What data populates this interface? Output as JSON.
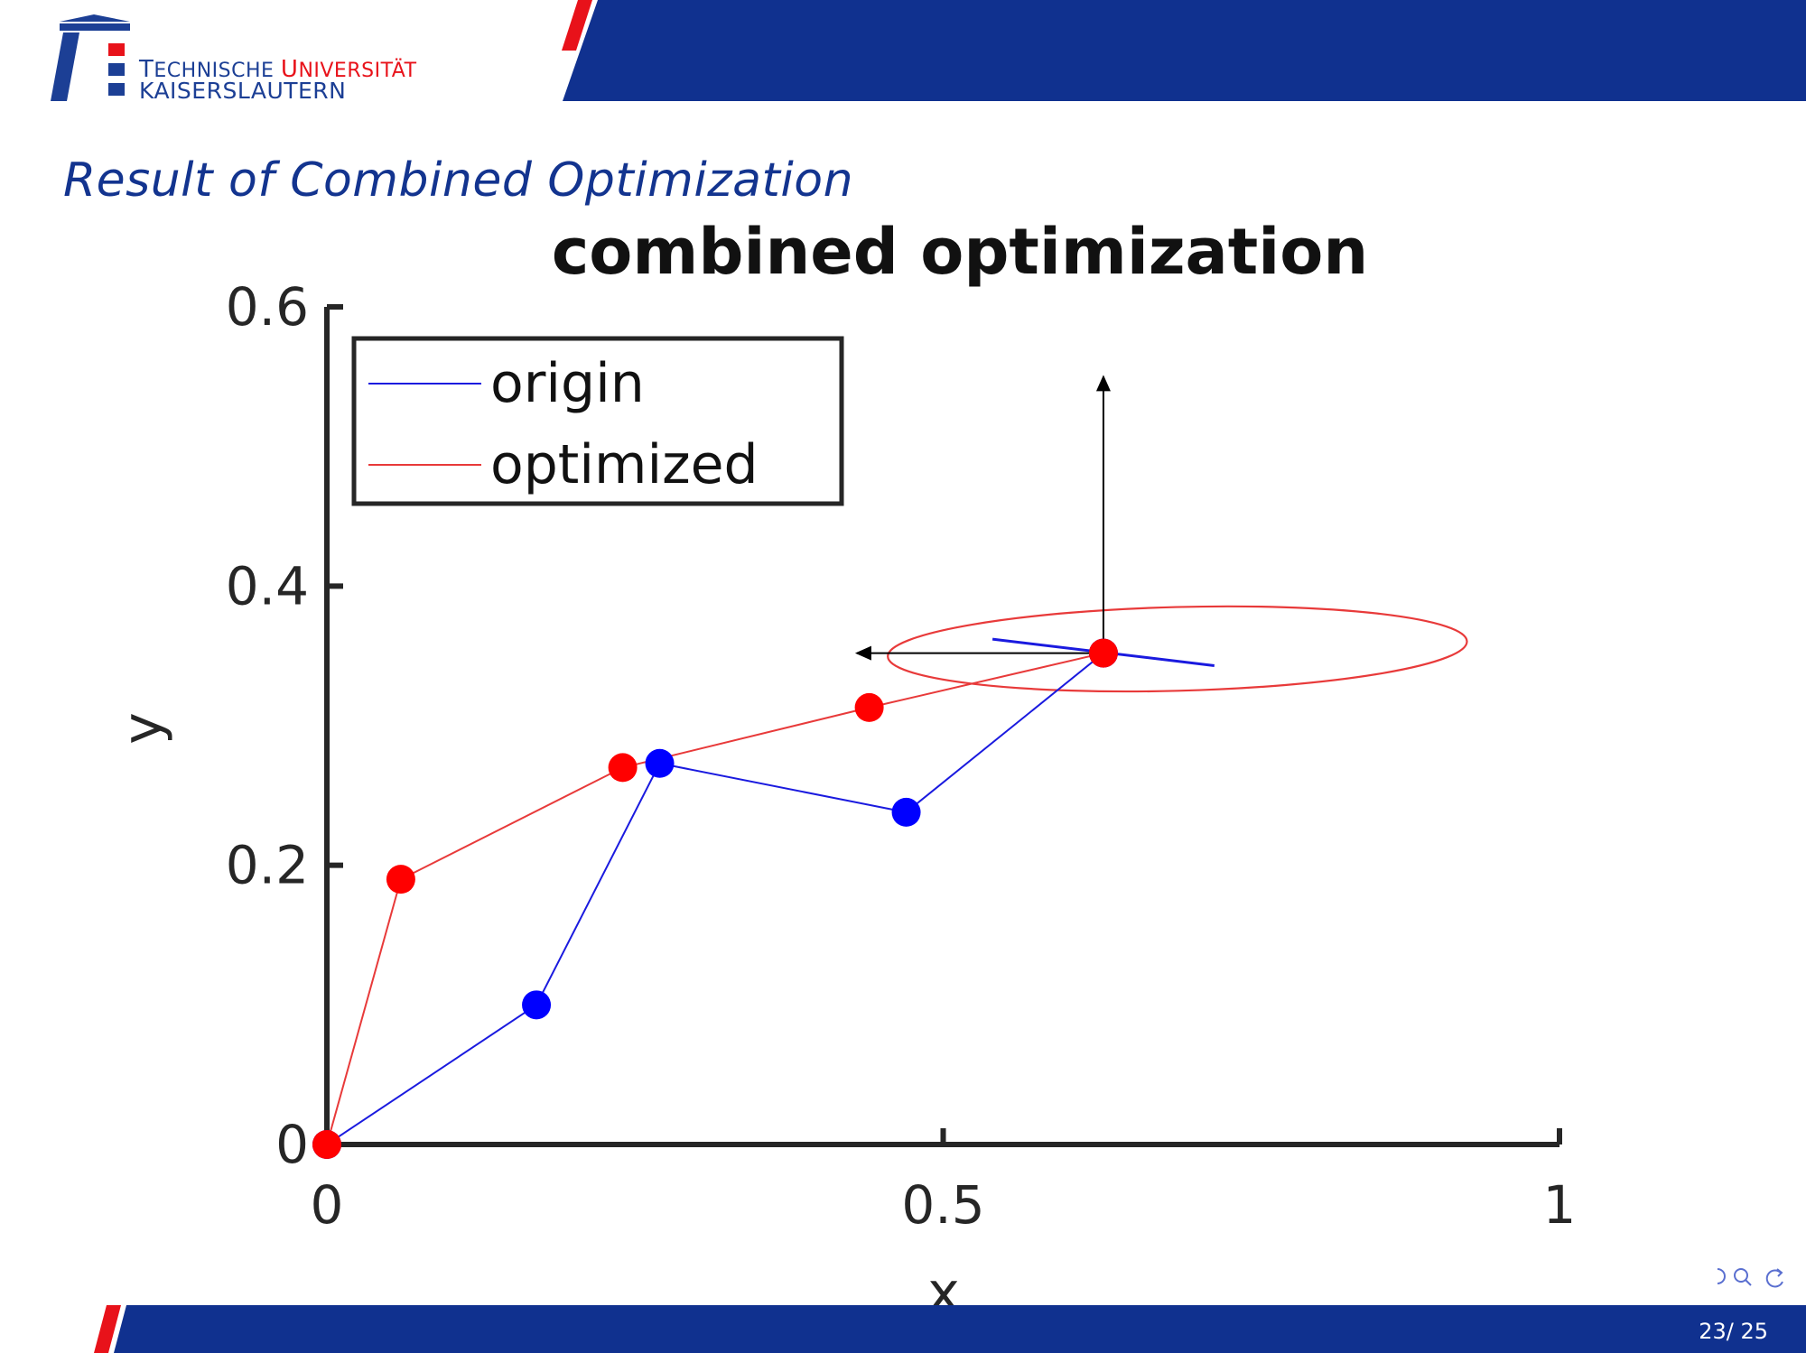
{
  "header": {
    "logo": {
      "line1_prefix_cap": "T",
      "line1_prefix_rest": "ECHNISCHE ",
      "line1_suffix_cap": "U",
      "line1_suffix_rest": "NIVERSITÄT",
      "line2": "KAISERSLAUTERN"
    },
    "colors": {
      "banner_blue": "#10318f",
      "accent_red": "#e8121a",
      "title_blue": "#13348f"
    }
  },
  "slide": {
    "title": "Result of Combined Optimization"
  },
  "chart_data": {
    "type": "line",
    "title": "combined optimization",
    "xlabel": "x",
    "ylabel": "y",
    "xlim": [
      0,
      1
    ],
    "ylim": [
      0,
      0.6
    ],
    "x_ticks": [
      "0",
      "0.5",
      "1"
    ],
    "y_ticks": [
      "0",
      "0.2",
      "0.4",
      "0.6"
    ],
    "legend_position": "top-left",
    "series": [
      {
        "name": "origin",
        "color": "#1a1adf",
        "marker_color": "#0000ff",
        "points": [
          [
            0,
            0
          ],
          [
            0.17,
            0.1
          ],
          [
            0.27,
            0.273
          ],
          [
            0.47,
            0.238
          ],
          [
            0.63,
            0.352
          ]
        ]
      },
      {
        "name": "optimized",
        "color": "#e83a3a",
        "marker_color": "#ff0000",
        "points": [
          [
            0,
            0
          ],
          [
            0.06,
            0.19
          ],
          [
            0.24,
            0.27
          ],
          [
            0.44,
            0.313
          ],
          [
            0.63,
            0.352
          ]
        ]
      }
    ],
    "annotations": {
      "ellipse": {
        "center": [
          0.69,
          0.355
        ],
        "semi_axis_x": 0.235,
        "semi_axis_y": 0.03,
        "rotation_deg": -1.5,
        "color": "#e83a3a"
      },
      "blue_segment": {
        "from": [
          0.54,
          0.362
        ],
        "to": [
          0.72,
          0.343
        ],
        "color": "#1a1adf"
      },
      "arrows": [
        {
          "from": [
            0.63,
            0.352
          ],
          "to": [
            0.63,
            0.55
          ],
          "color": "#000000"
        },
        {
          "from": [
            0.63,
            0.352
          ],
          "to": [
            0.43,
            0.352
          ],
          "color": "#000000"
        }
      ]
    }
  },
  "footer": {
    "page_number": "23/ 25"
  }
}
